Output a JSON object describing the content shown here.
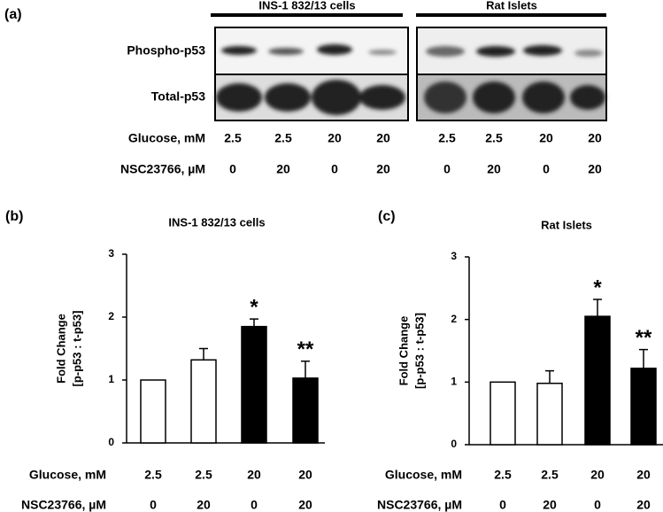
{
  "panel_a": {
    "label": "(a)",
    "groups": [
      "INS-1 832/13 cells",
      "Rat Islets"
    ],
    "rows": [
      "Phospho-p53",
      "Total-p53"
    ],
    "conditions": [
      {
        "name": "Glucose, mM",
        "values": [
          2.5,
          2.5,
          20,
          20,
          2.5,
          2.5,
          20,
          20
        ]
      },
      {
        "name": "NSC23766, µM",
        "values": [
          0,
          20,
          0,
          20,
          0,
          20,
          0,
          20
        ]
      }
    ]
  },
  "chart_data": [
    {
      "type": "bar",
      "label": "(b)",
      "title": "INS-1 832/13 cells",
      "ylabel": [
        "Fold Change",
        "[p-p53 : t-p53]"
      ],
      "values": [
        1,
        1.32,
        1.85,
        1.03
      ],
      "errors": [
        null,
        0.18,
        0.12,
        0.27
      ],
      "colors": [
        "#ffffff",
        "#ffffff",
        "#000000",
        "#000000"
      ],
      "annotations": [
        null,
        null,
        "*",
        "**"
      ],
      "ylim": [
        0,
        3
      ],
      "yticks": [
        0,
        1,
        2,
        3
      ],
      "conditions": [
        {
          "name": "Glucose, mM",
          "values": [
            2.5,
            2.5,
            20,
            20
          ]
        },
        {
          "name": "NSC23766, µM",
          "values": [
            0,
            20,
            0,
            20
          ]
        }
      ]
    },
    {
      "type": "bar",
      "label": "(c)",
      "title": "Rat Islets",
      "ylabel": [
        "Fold Change",
        "[p-p53 : t-p53]"
      ],
      "values": [
        1,
        0.98,
        2.05,
        1.22
      ],
      "errors": [
        null,
        0.2,
        0.27,
        0.3
      ],
      "colors": [
        "#ffffff",
        "#ffffff",
        "#000000",
        "#000000"
      ],
      "annotations": [
        null,
        null,
        "*",
        "**"
      ],
      "ylim": [
        0,
        3
      ],
      "yticks": [
        0,
        1,
        2,
        3
      ],
      "conditions": [
        {
          "name": "Glucose, mM",
          "values": [
            2.5,
            2.5,
            20,
            20
          ]
        },
        {
          "name": "NSC23766, µM",
          "values": [
            0,
            20,
            0,
            20
          ]
        }
      ]
    }
  ]
}
